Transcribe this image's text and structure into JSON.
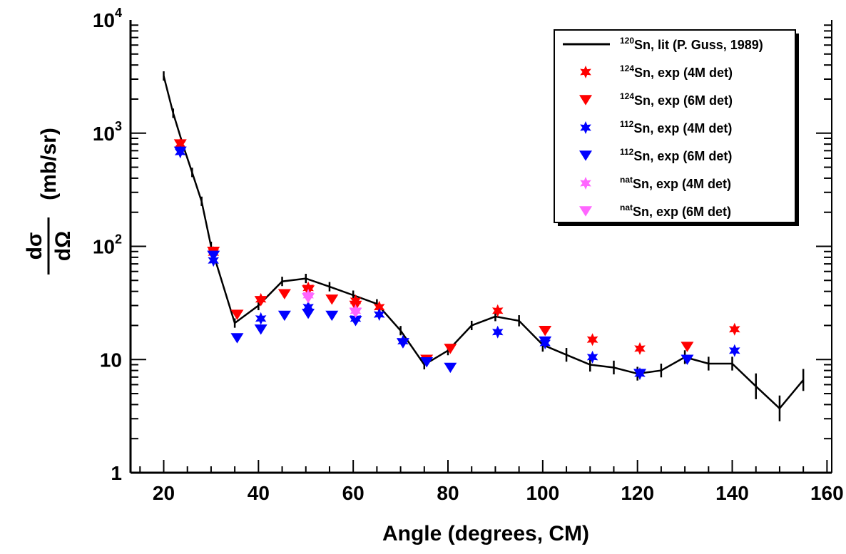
{
  "chart_data": {
    "type": "scatter",
    "xlabel": "Angle (degrees, CM)",
    "ylabel_prefix_num": "dσ",
    "ylabel_prefix_den": "dΩ",
    "ylabel_unit": "(mb/sr)",
    "xlim": [
      13,
      161
    ],
    "ylim": [
      1,
      10000
    ],
    "yscale": "log",
    "x_ticks": [
      20,
      40,
      60,
      80,
      100,
      120,
      140,
      160
    ],
    "x_tick_labels": [
      "20",
      "40",
      "60",
      "80",
      "100",
      "120",
      "140",
      "160"
    ],
    "y_tick_labels": [
      {
        "value": 1,
        "base": "1",
        "exp": ""
      },
      {
        "value": 10,
        "base": "10",
        "exp": ""
      },
      {
        "value": 100,
        "base": "10",
        "exp": "2"
      },
      {
        "value": 1000,
        "base": "10",
        "exp": "3"
      },
      {
        "value": 10000,
        "base": "10",
        "exp": "4"
      }
    ],
    "legend_position": "top-right",
    "series": [
      {
        "name_sup": "120",
        "name_text": "Sn, lit (P. Guss, 1989)",
        "kind": "line",
        "color": "#000000",
        "x": [
          20,
          22,
          24,
          26,
          28,
          30,
          35,
          40,
          45,
          50,
          55,
          60,
          65,
          70,
          75,
          80,
          85,
          90,
          95,
          100,
          105,
          110,
          115,
          120,
          125,
          130,
          135,
          140,
          145,
          150,
          155
        ],
        "y": [
          3200,
          1500,
          800,
          450,
          250,
          100,
          21,
          30,
          49,
          52,
          44,
          37,
          31,
          18,
          9,
          12,
          20,
          24,
          22,
          13.5,
          11,
          9,
          8.5,
          7.5,
          8,
          10.5,
          9.2,
          9.2,
          5.8,
          3.7,
          6.6
        ],
        "err": [
          0.1,
          0.1,
          0.1,
          0.1,
          0.1,
          0.1,
          0.1,
          0.1,
          0.1,
          0.1,
          0.1,
          0.1,
          0.1,
          0.1,
          0.1,
          0.1,
          0.1,
          0.1,
          0.12,
          0.15,
          0.15,
          0.15,
          0.15,
          0.15,
          0.15,
          0.15,
          0.15,
          0.15,
          0.3,
          0.3,
          0.25
        ]
      },
      {
        "name_sup": "124",
        "name_text": "Sn, exp (4M det)",
        "kind": "star",
        "color": "#ff0000",
        "x": [
          23.5,
          30.5,
          40.5,
          50.5,
          60.5,
          65.5,
          90.5,
          110.5,
          120.5,
          140.5
        ],
        "y": [
          800,
          88,
          34,
          43,
          33,
          29,
          27,
          15,
          12.5,
          18.5
        ]
      },
      {
        "name_sup": "124",
        "name_text": "Sn, exp (6M det)",
        "kind": "triangle",
        "color": "#ff0000",
        "x": [
          23.5,
          30.5,
          35.5,
          40.5,
          45.5,
          50.5,
          55.5,
          60.5,
          75.5,
          80.5,
          100.5,
          130.5
        ],
        "y": [
          800,
          90,
          25,
          33,
          38,
          41,
          34,
          30,
          10,
          12.5,
          18,
          13
        ]
      },
      {
        "name_sup": "112",
        "name_text": "Sn, exp (4M det)",
        "kind": "star",
        "color": "#0000ff",
        "x": [
          23.5,
          30.5,
          40.5,
          50.5,
          60.5,
          65.5,
          70.5,
          90.5,
          100.5,
          110.5,
          120.5,
          140.5
        ],
        "y": [
          680,
          75,
          23,
          29,
          23,
          25,
          14.5,
          17.5,
          14,
          10.5,
          7.5,
          12
        ]
      },
      {
        "name_sup": "112",
        "name_text": "Sn, exp (6M det)",
        "kind": "triangle",
        "color": "#0000ff",
        "x": [
          23.5,
          30.5,
          35.5,
          40.5,
          45.5,
          50.5,
          55.5,
          60.5,
          70.5,
          75.5,
          80.5,
          100.5,
          120.5,
          130.5
        ],
        "y": [
          690,
          83,
          15.5,
          18.5,
          24.5,
          25.5,
          24.5,
          22,
          14,
          9.5,
          8.5,
          14.5,
          7.5,
          10
        ]
      },
      {
        "name_sup": "nat",
        "name_text": "Sn, exp (4M det)",
        "kind": "star",
        "color": "#ff66ff",
        "x": [
          50.5,
          60.5
        ],
        "y": [
          37,
          27
        ]
      },
      {
        "name_sup": "nat",
        "name_text": "Sn, exp (6M det)",
        "kind": "triangle",
        "color": "#ff66ff",
        "x": [
          50.5,
          60.5
        ],
        "y": [
          35,
          26
        ]
      }
    ]
  }
}
